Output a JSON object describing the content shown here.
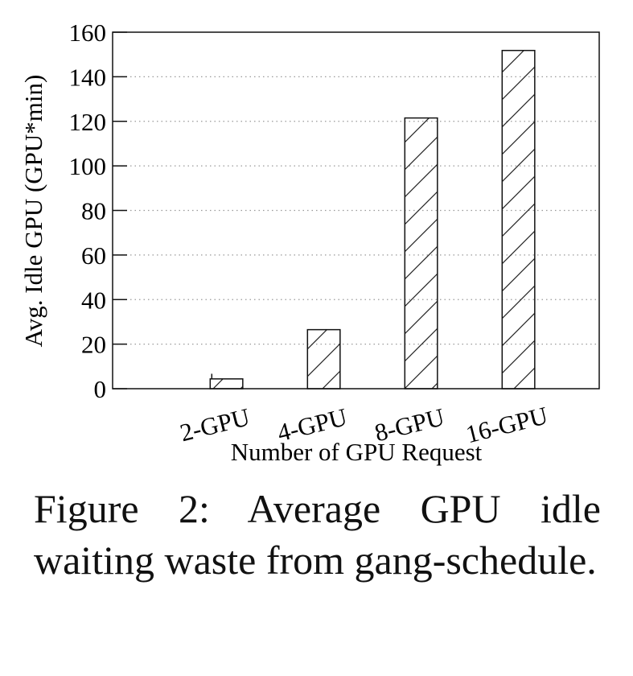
{
  "chart_data": {
    "type": "bar",
    "categories": [
      "2-GPU",
      "4-GPU",
      "8-GPU",
      "16-GPU"
    ],
    "values": [
      4.4,
      26.5,
      121.5,
      151.8
    ],
    "error_bar": {
      "category": "2-GPU",
      "value": 6.7
    },
    "xlabel": "Number of GPU Request",
    "ylabel": "Avg. Idle GPU (GPU*min)",
    "ylim": [
      0,
      160
    ],
    "yticks": [
      0,
      20,
      40,
      60,
      80,
      100,
      120,
      140,
      160
    ],
    "grid": "horizontal dotted",
    "bar_fill": "diagonal hatch",
    "colors": {
      "bar_edge": "#111111",
      "hatch": "#222222",
      "grid": "#999999"
    }
  },
  "caption": "Figure 2: Average GPU idle waiting waste from gang-schedule."
}
